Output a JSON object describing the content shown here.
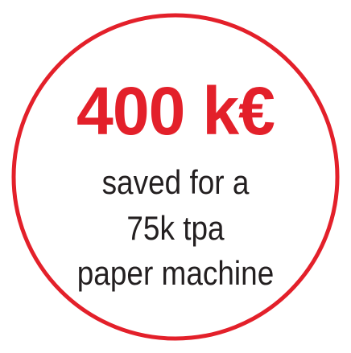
{
  "colors": {
    "accent": "#e3202a",
    "text": "#231f20",
    "background": "#ffffff"
  },
  "badge": {
    "amount": "400 k€",
    "lines": [
      "saved for a",
      "75k tpa",
      "paper machine"
    ]
  }
}
